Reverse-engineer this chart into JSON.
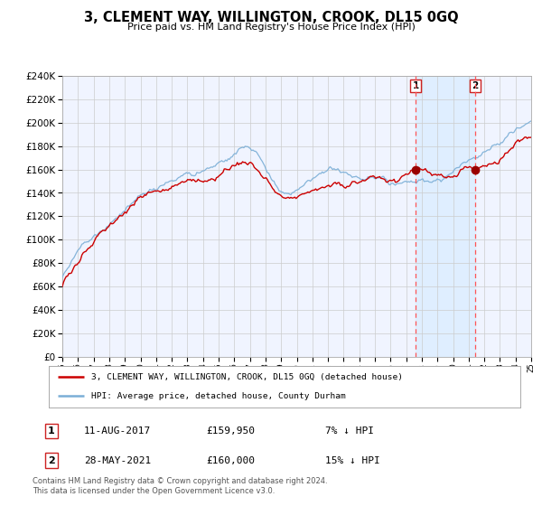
{
  "title": "3, CLEMENT WAY, WILLINGTON, CROOK, DL15 0GQ",
  "subtitle": "Price paid vs. HM Land Registry's House Price Index (HPI)",
  "legend_line1": "3, CLEMENT WAY, WILLINGTON, CROOK, DL15 0GQ (detached house)",
  "legend_line2": "HPI: Average price, detached house, County Durham",
  "sale1_date": "11-AUG-2017",
  "sale1_price": 159950,
  "sale1_hpi": "7% ↓ HPI",
  "sale2_date": "28-MAY-2021",
  "sale2_price": 160000,
  "sale2_hpi": "15% ↓ HPI",
  "footnote": "Contains HM Land Registry data © Crown copyright and database right 2024.\nThis data is licensed under the Open Government Licence v3.0.",
  "hpi_color": "#7aaed6",
  "price_color": "#cc0000",
  "marker_color": "#990000",
  "vline_color": "#ff5555",
  "shade_color": "#ddeeff",
  "grid_color": "#cccccc",
  "bg_color": "#f0f4ff",
  "ylim_min": 0,
  "ylim_max": 240000,
  "year_start": 1995,
  "year_end": 2025,
  "sale1_year": 2017.6,
  "sale2_year": 2021.4
}
